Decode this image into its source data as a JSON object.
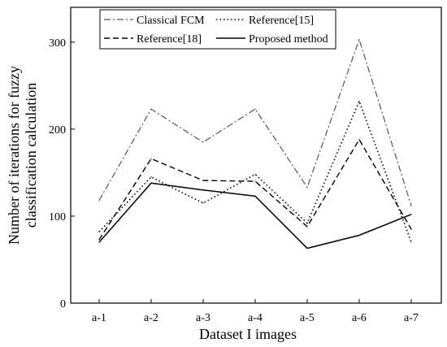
{
  "chart_data": {
    "type": "line",
    "categories": [
      "a-1",
      "a-2",
      "a-3",
      "a-4",
      "a-5",
      "a-6",
      "a-7"
    ],
    "xlabel": "Dataset I images",
    "ylabel_lines": [
      "Number of iterations for fuzzy",
      "classification calculation"
    ],
    "ylim": [
      0,
      340
    ],
    "yticks": [
      0,
      100,
      200,
      300
    ],
    "grid": false,
    "legend_position": "top",
    "series": [
      {
        "name": "Classical FCM",
        "style": "dashdot",
        "values": [
          118,
          223,
          185,
          223,
          133,
          303,
          112
        ]
      },
      {
        "name": "Reference[15]",
        "style": "dotted",
        "values": [
          82,
          145,
          115,
          148,
          92,
          232,
          70
        ]
      },
      {
        "name": "Reference[18]",
        "style": "dashed",
        "values": [
          73,
          166,
          141,
          140,
          88,
          188,
          85
        ]
      },
      {
        "name": "Proposed method",
        "style": "solid",
        "values": [
          70,
          138,
          130,
          123,
          63,
          78,
          102
        ]
      }
    ]
  }
}
